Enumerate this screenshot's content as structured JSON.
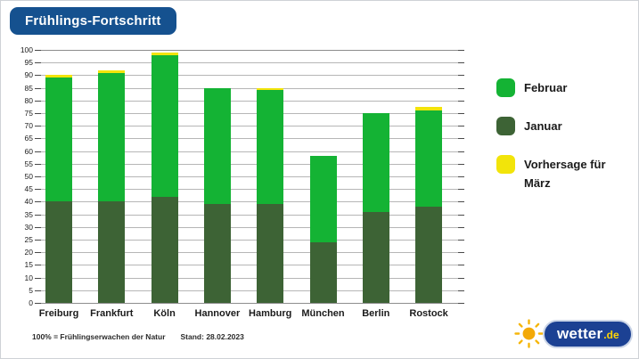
{
  "header": {
    "title": "Frühlings-Fortschritt"
  },
  "legend": {
    "items": [
      {
        "label": "Februar",
        "color": "#14b334"
      },
      {
        "label": "Januar",
        "color": "#3d6335"
      },
      {
        "label": "Vorhersage für März",
        "color": "#f2e40a"
      }
    ]
  },
  "footer": {
    "note": "100% = Frühlingserwachen der Natur",
    "stand": "Stand: 28.02.2023"
  },
  "logo": {
    "name": "wetter",
    "tld": ".de"
  },
  "colors": {
    "title_bg": "#15518f",
    "grid": "#b6b6b6",
    "axis_edge": "#8d8d8d",
    "tick": "#4a4a4a",
    "logo_pill": "#1c4193",
    "logo_tld": "#ffd503",
    "sun": "#f6b60b"
  },
  "chart_data": {
    "type": "bar",
    "subtype": "stacked",
    "title": "Frühlings-Fortschritt",
    "xlabel": "",
    "ylabel": "",
    "ylim": [
      0,
      100
    ],
    "ytick_step": 5,
    "grid": true,
    "legend_position": "right",
    "categories": [
      "Freiburg",
      "Frankfurt",
      "Köln",
      "Hannover",
      "Hamburg",
      "München",
      "Berlin",
      "Rostock"
    ],
    "series": [
      {
        "name": "Januar",
        "color": "#3d6335",
        "values": [
          40,
          40,
          42,
          39,
          39,
          24,
          36,
          38
        ]
      },
      {
        "name": "Februar",
        "color": "#14b334",
        "values": [
          49,
          51,
          56,
          46,
          45,
          34,
          39,
          38
        ]
      },
      {
        "name": "Vorhersage für März",
        "color": "#f2e40a",
        "values": [
          1.3,
          1,
          0.8,
          0,
          1,
          0,
          0,
          1.3
        ]
      }
    ],
    "stack_totals": [
      90.3,
      92,
      98.8,
      85,
      85,
      58,
      75,
      77.3
    ]
  }
}
